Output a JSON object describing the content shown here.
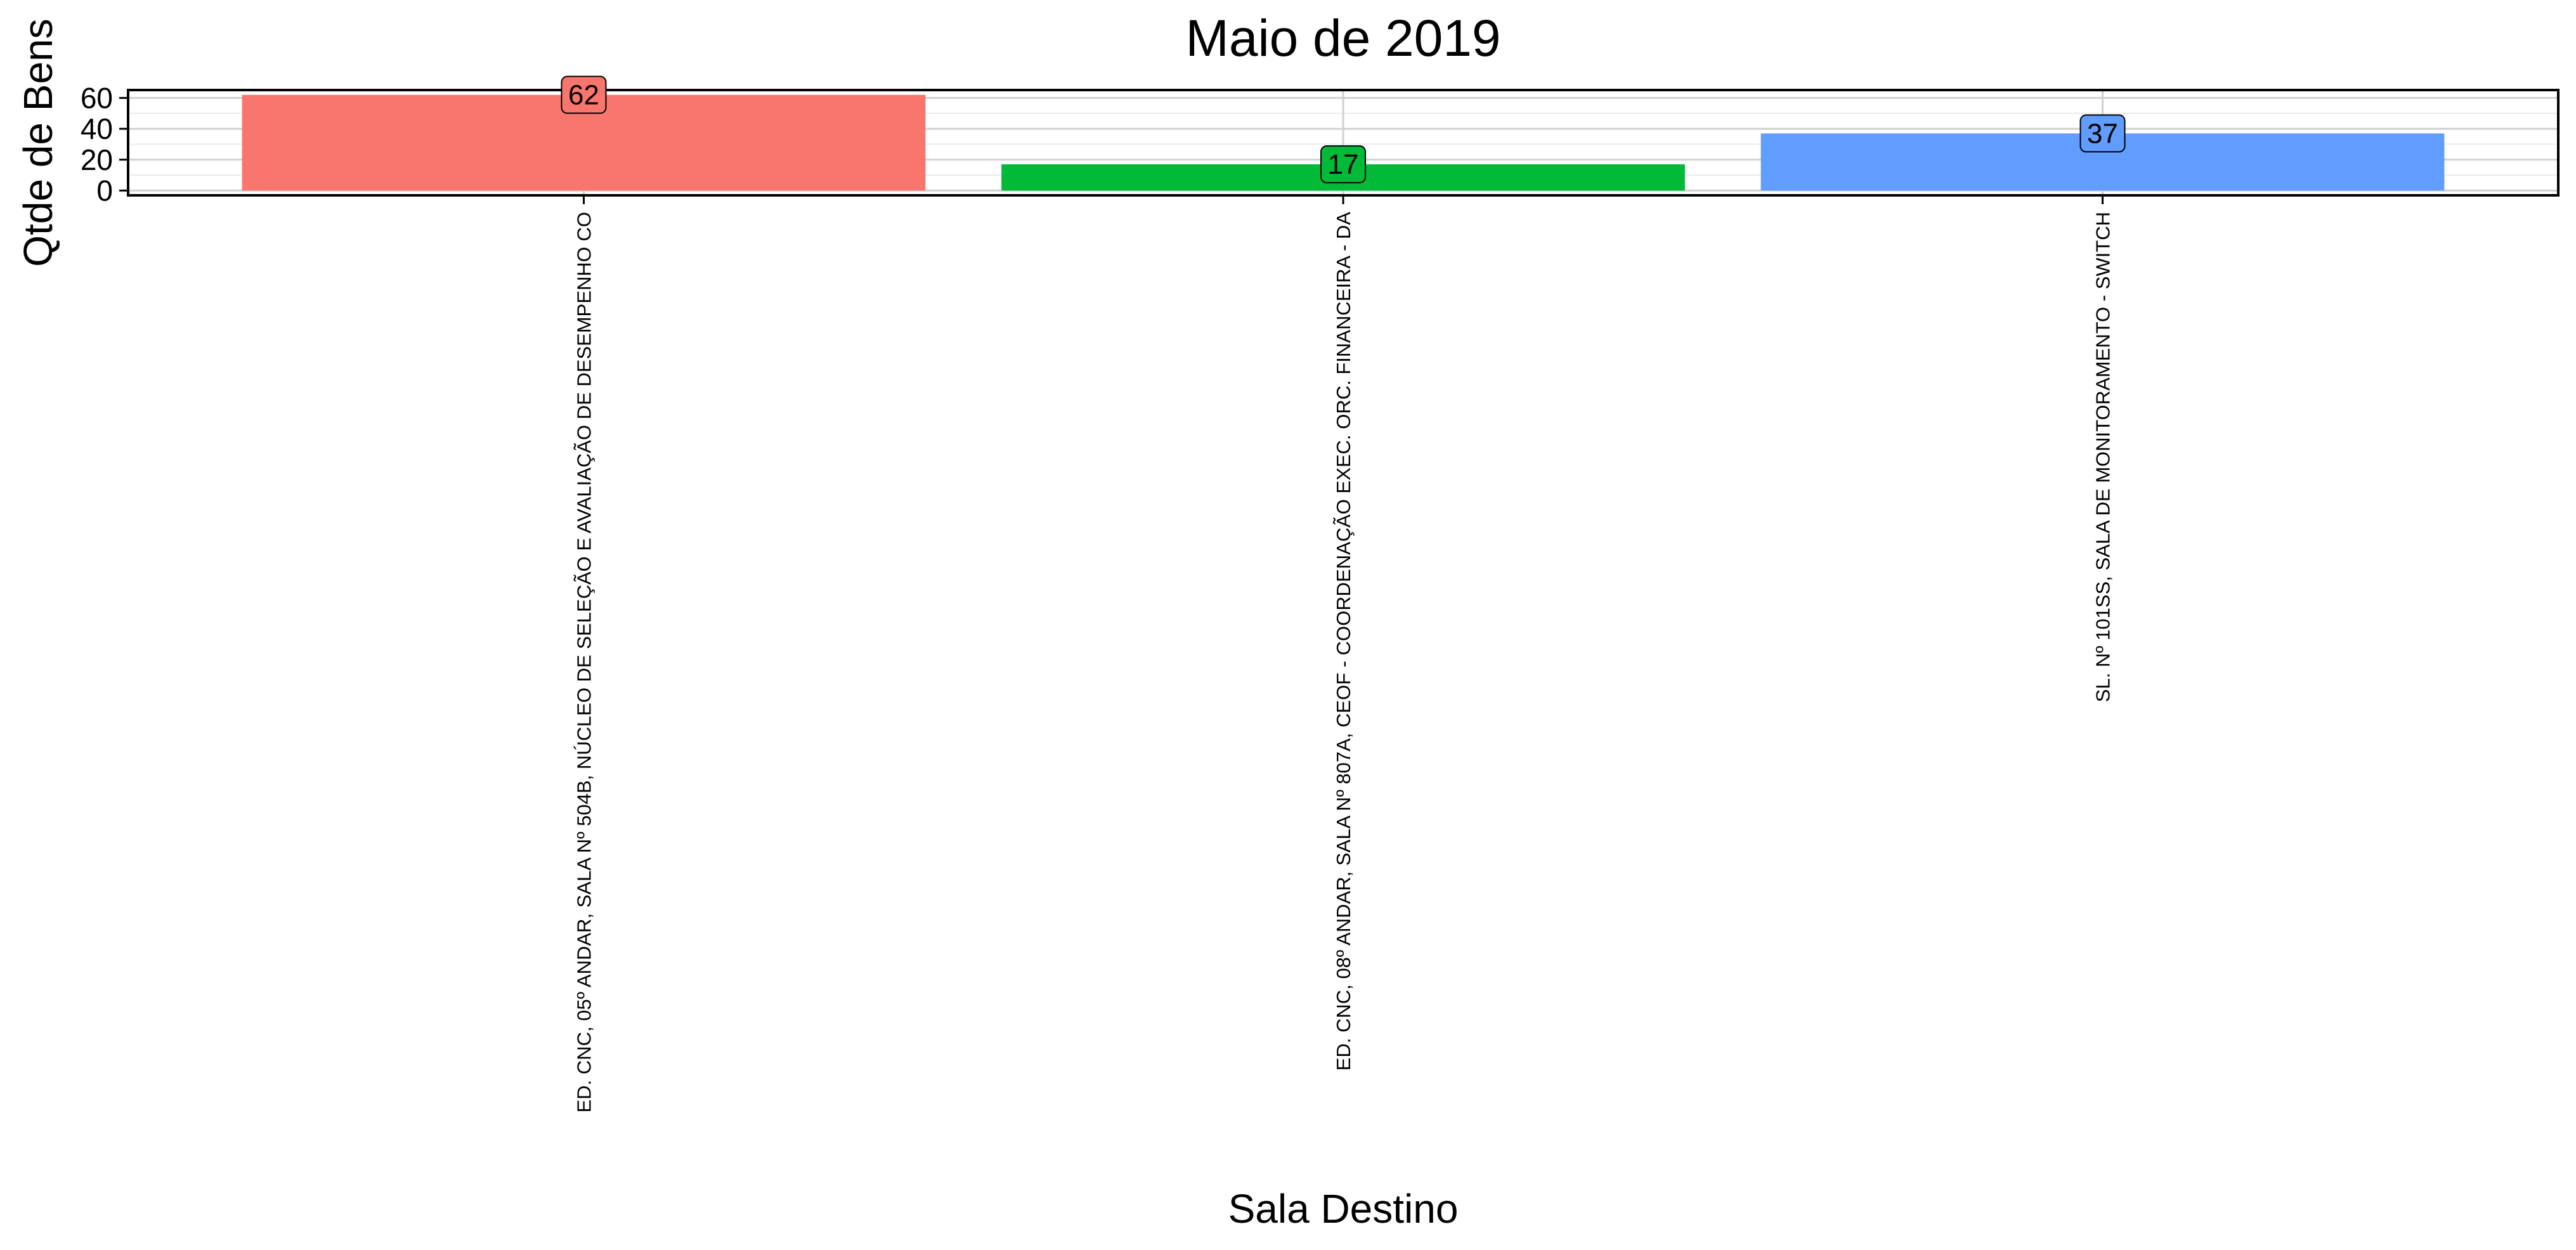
{
  "chart_data": {
    "type": "bar",
    "title": "Maio  de  2019",
    "xlabel": "Sala Destino",
    "ylabel": "Qtde de Bens",
    "categories": [
      "ED. CNC, 05º ANDAR, SALA Nº 504B, NÚCLEO DE SELEÇÃO E AVALIAÇÃO DE DESEMPENHO CO",
      "ED. CNC, 08º ANDAR, SALA Nº 807A, CEOF - COORDENAÇÃO EXEC. ORC. FINANCEIRA - DA",
      "SL. Nº 101SS, SALA DE MONITORAMENTO - SWITCH"
    ],
    "values": [
      62,
      17,
      37
    ],
    "data_labels": [
      "62",
      "17",
      "37"
    ],
    "colors": [
      "#F8766D",
      "#00BA38",
      "#619CFF"
    ],
    "y_ticks": [
      0,
      20,
      40,
      60
    ],
    "y_tick_labels": [
      "0",
      "20",
      "40",
      "60"
    ],
    "ylim": [
      -3.1,
      65.1
    ],
    "grid": true,
    "legend": "none"
  }
}
